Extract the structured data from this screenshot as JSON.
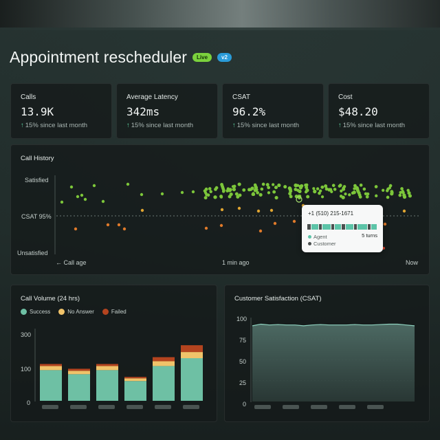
{
  "header": {
    "title": "Appointment rescheduler",
    "badge_live": "Live",
    "badge_version": "v2"
  },
  "stats": [
    {
      "label": "Calls",
      "value": "13.9K",
      "trend": "15% since last month"
    },
    {
      "label": "Average Latency",
      "value": "342ms",
      "trend": "15% since last month"
    },
    {
      "label": "CSAT",
      "value": "96.2%",
      "trend": "15% since last month"
    },
    {
      "label": "Cost",
      "value": "$48.20",
      "trend": "15% since last month"
    }
  ],
  "call_history": {
    "title": "Call History",
    "y_labels": {
      "top": "Satisfied",
      "mid": "CSAT 95%",
      "bottom": "Unsatisfied"
    },
    "x_labels": {
      "left": "← Call age",
      "mid": "1 min ago",
      "right": "Now"
    },
    "colors": {
      "satisfied": "#7cc63a",
      "neutral": "#e0a531",
      "unsatisfied": "#e07a2a"
    },
    "tooltip": {
      "phone": "+1 (510) 215-1671",
      "turns": "5 turns",
      "legend_agent": "Agent",
      "legend_customer": "Customer",
      "agent_color": "#5cc4a8",
      "customer_color": "#4a4f4e"
    }
  },
  "call_volume": {
    "title": "Call Volume (24 hrs)",
    "legend": [
      {
        "label": "Success",
        "color": "#6ec0a4"
      },
      {
        "label": "No Answer",
        "color": "#f0c36a"
      },
      {
        "label": "Failed",
        "color": "#b4441f"
      }
    ],
    "y_ticks": [
      "300",
      "100",
      "0"
    ]
  },
  "csat_panel": {
    "title": "Customer Satisfaction (CSAT)",
    "y_ticks": [
      "100",
      "75",
      "50",
      "25",
      "0"
    ]
  },
  "chart_data": [
    {
      "type": "bar",
      "title": "Call Volume (24 hrs)",
      "ylim": [
        0,
        300
      ],
      "categories": [
        "",
        "",
        "",
        "",
        "",
        ""
      ],
      "series": [
        {
          "name": "Success",
          "values": [
            90,
            78,
            90,
            58,
            102,
            125
          ]
        },
        {
          "name": "No Answer",
          "values": [
            12,
            10,
            12,
            8,
            14,
            18
          ]
        },
        {
          "name": "Failed",
          "values": [
            6,
            6,
            6,
            4,
            12,
            20
          ]
        }
      ]
    },
    {
      "type": "area",
      "title": "Customer Satisfaction (CSAT)",
      "ylim": [
        0,
        100
      ],
      "x": [
        0,
        1,
        2,
        3,
        4,
        5,
        6,
        7,
        8,
        9,
        10,
        11,
        12,
        13,
        14,
        15,
        16,
        17,
        18,
        19
      ],
      "series": [
        {
          "values": [
            91,
            93,
            92,
            92.5,
            92,
            92,
            91,
            92,
            92.5,
            92,
            92,
            92,
            92.5,
            92,
            92,
            92.5,
            93,
            93,
            92,
            91
          ]
        }
      ]
    },
    {
      "type": "scatter",
      "title": "Call History"
    }
  ]
}
